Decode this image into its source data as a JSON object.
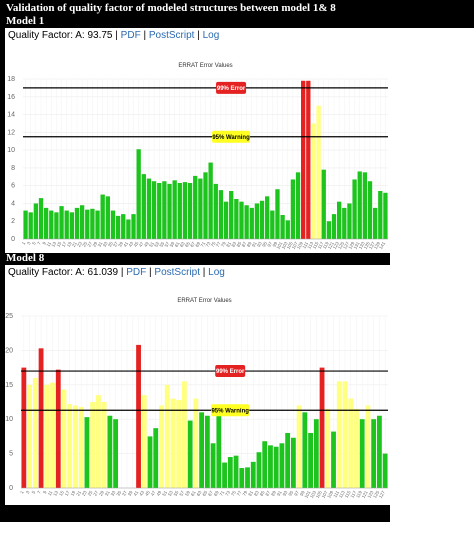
{
  "header": {
    "title": "Validation of quality factor of modeled structures between model 1& 8",
    "separator": "|"
  },
  "panels": [
    {
      "model": "Model 1",
      "quality": "Quality Factor: A: 93.75",
      "links": [
        "PDF",
        "PostScript",
        "Log"
      ]
    },
    {
      "model": "Model 8",
      "quality": "Quality Factor: A: 61.039",
      "links": [
        "PDF",
        "PostScript",
        "Log"
      ]
    }
  ],
  "chart_data": [
    {
      "type": "bar",
      "title": "ERRAT Error Values",
      "categories": [
        1,
        3,
        5,
        7,
        9,
        11,
        13,
        15,
        17,
        19,
        21,
        23,
        25,
        27,
        29,
        31,
        33,
        35,
        37,
        39,
        41,
        43,
        45,
        47,
        49,
        51,
        53,
        55,
        57,
        59,
        61,
        63,
        65,
        67,
        69,
        71,
        73,
        75,
        77,
        79,
        81,
        83,
        85,
        87,
        89,
        91,
        93,
        95,
        97,
        99,
        101,
        103,
        105,
        107,
        109,
        111,
        113,
        115,
        117,
        119,
        121,
        123,
        125,
        127,
        129,
        131,
        133,
        135,
        137,
        139,
        141
      ],
      "values": [
        3.2,
        3.0,
        4.0,
        4.6,
        3.5,
        3.2,
        3.0,
        3.7,
        3.2,
        3.0,
        3.5,
        3.8,
        3.3,
        3.4,
        3.2,
        5.0,
        4.8,
        3.2,
        2.6,
        2.8,
        2.2,
        2.8,
        10.1,
        7.3,
        6.8,
        6.5,
        6.3,
        6.5,
        6.2,
        6.6,
        6.3,
        6.4,
        6.3,
        7.1,
        6.8,
        7.5,
        8.6,
        6.2,
        5.5,
        4.2,
        5.4,
        4.5,
        4.2,
        3.8,
        3.5,
        4.0,
        4.3,
        4.8,
        3.2,
        5.6,
        2.7,
        2.1,
        6.7,
        7.5,
        17.8,
        17.8,
        13,
        15,
        7.8,
        2.0,
        2.8,
        4.2,
        3.5,
        4.0,
        6.7,
        7.6,
        7.5,
        6.5,
        3.5,
        5.4,
        5.2
      ],
      "ylim": [
        0,
        18
      ],
      "yticks": [
        0,
        2,
        4,
        6,
        8,
        10,
        12,
        14,
        16,
        18
      ],
      "grid": true,
      "colors": {
        "ok": "#1ec41e",
        "warning": "#ffff80",
        "error": "#e52222"
      },
      "lines": [
        {
          "value": 17,
          "label": "99% Error",
          "level": "error"
        },
        {
          "value": 11.5,
          "label": "95% Warning",
          "level": "warning"
        }
      ]
    },
    {
      "type": "bar",
      "title": "ERRAT Error Values",
      "categories": [
        1,
        3,
        5,
        7,
        9,
        11,
        13,
        15,
        17,
        19,
        21,
        23,
        25,
        27,
        29,
        31,
        33,
        35,
        37,
        39,
        41,
        43,
        45,
        47,
        49,
        51,
        53,
        55,
        57,
        59,
        61,
        63,
        65,
        67,
        69,
        71,
        73,
        75,
        77,
        79,
        81,
        83,
        85,
        87,
        89,
        91,
        93,
        95,
        97,
        99,
        101,
        103,
        105,
        107,
        109,
        111,
        113,
        115,
        117,
        119,
        121,
        123,
        125,
        127
      ],
      "values": [
        17.5,
        15,
        16,
        20.3,
        15,
        15.3,
        17.2,
        14.3,
        12.2,
        12,
        11.8,
        10.3,
        12.5,
        13.5,
        12.5,
        10.5,
        10,
        null,
        null,
        null,
        20.8,
        13.5,
        7.5,
        8.7,
        12,
        15,
        13,
        12.8,
        15.5,
        9.8,
        13,
        11,
        10.5,
        6.5,
        10.5,
        3.7,
        4.5,
        4.7,
        2.9,
        3.0,
        3.8,
        5.2,
        6.8,
        6.2,
        6.0,
        6.5,
        8.0,
        7.3,
        12,
        11,
        8,
        10,
        17.5,
        11.5,
        8.2,
        15.5,
        15.5,
        13,
        11.5,
        10,
        12,
        10,
        10.5,
        5
      ],
      "ylim": [
        0,
        25
      ],
      "yticks": [
        0,
        5,
        10,
        15,
        20,
        25
      ],
      "grid": true,
      "colors": {
        "ok": "#1ec41e",
        "warning": "#ffff80",
        "error": "#e52222"
      },
      "lines": [
        {
          "value": 17,
          "label": "99% Error",
          "level": "error"
        },
        {
          "value": 11.3,
          "label": "95% Warning",
          "level": "warning"
        }
      ]
    }
  ]
}
